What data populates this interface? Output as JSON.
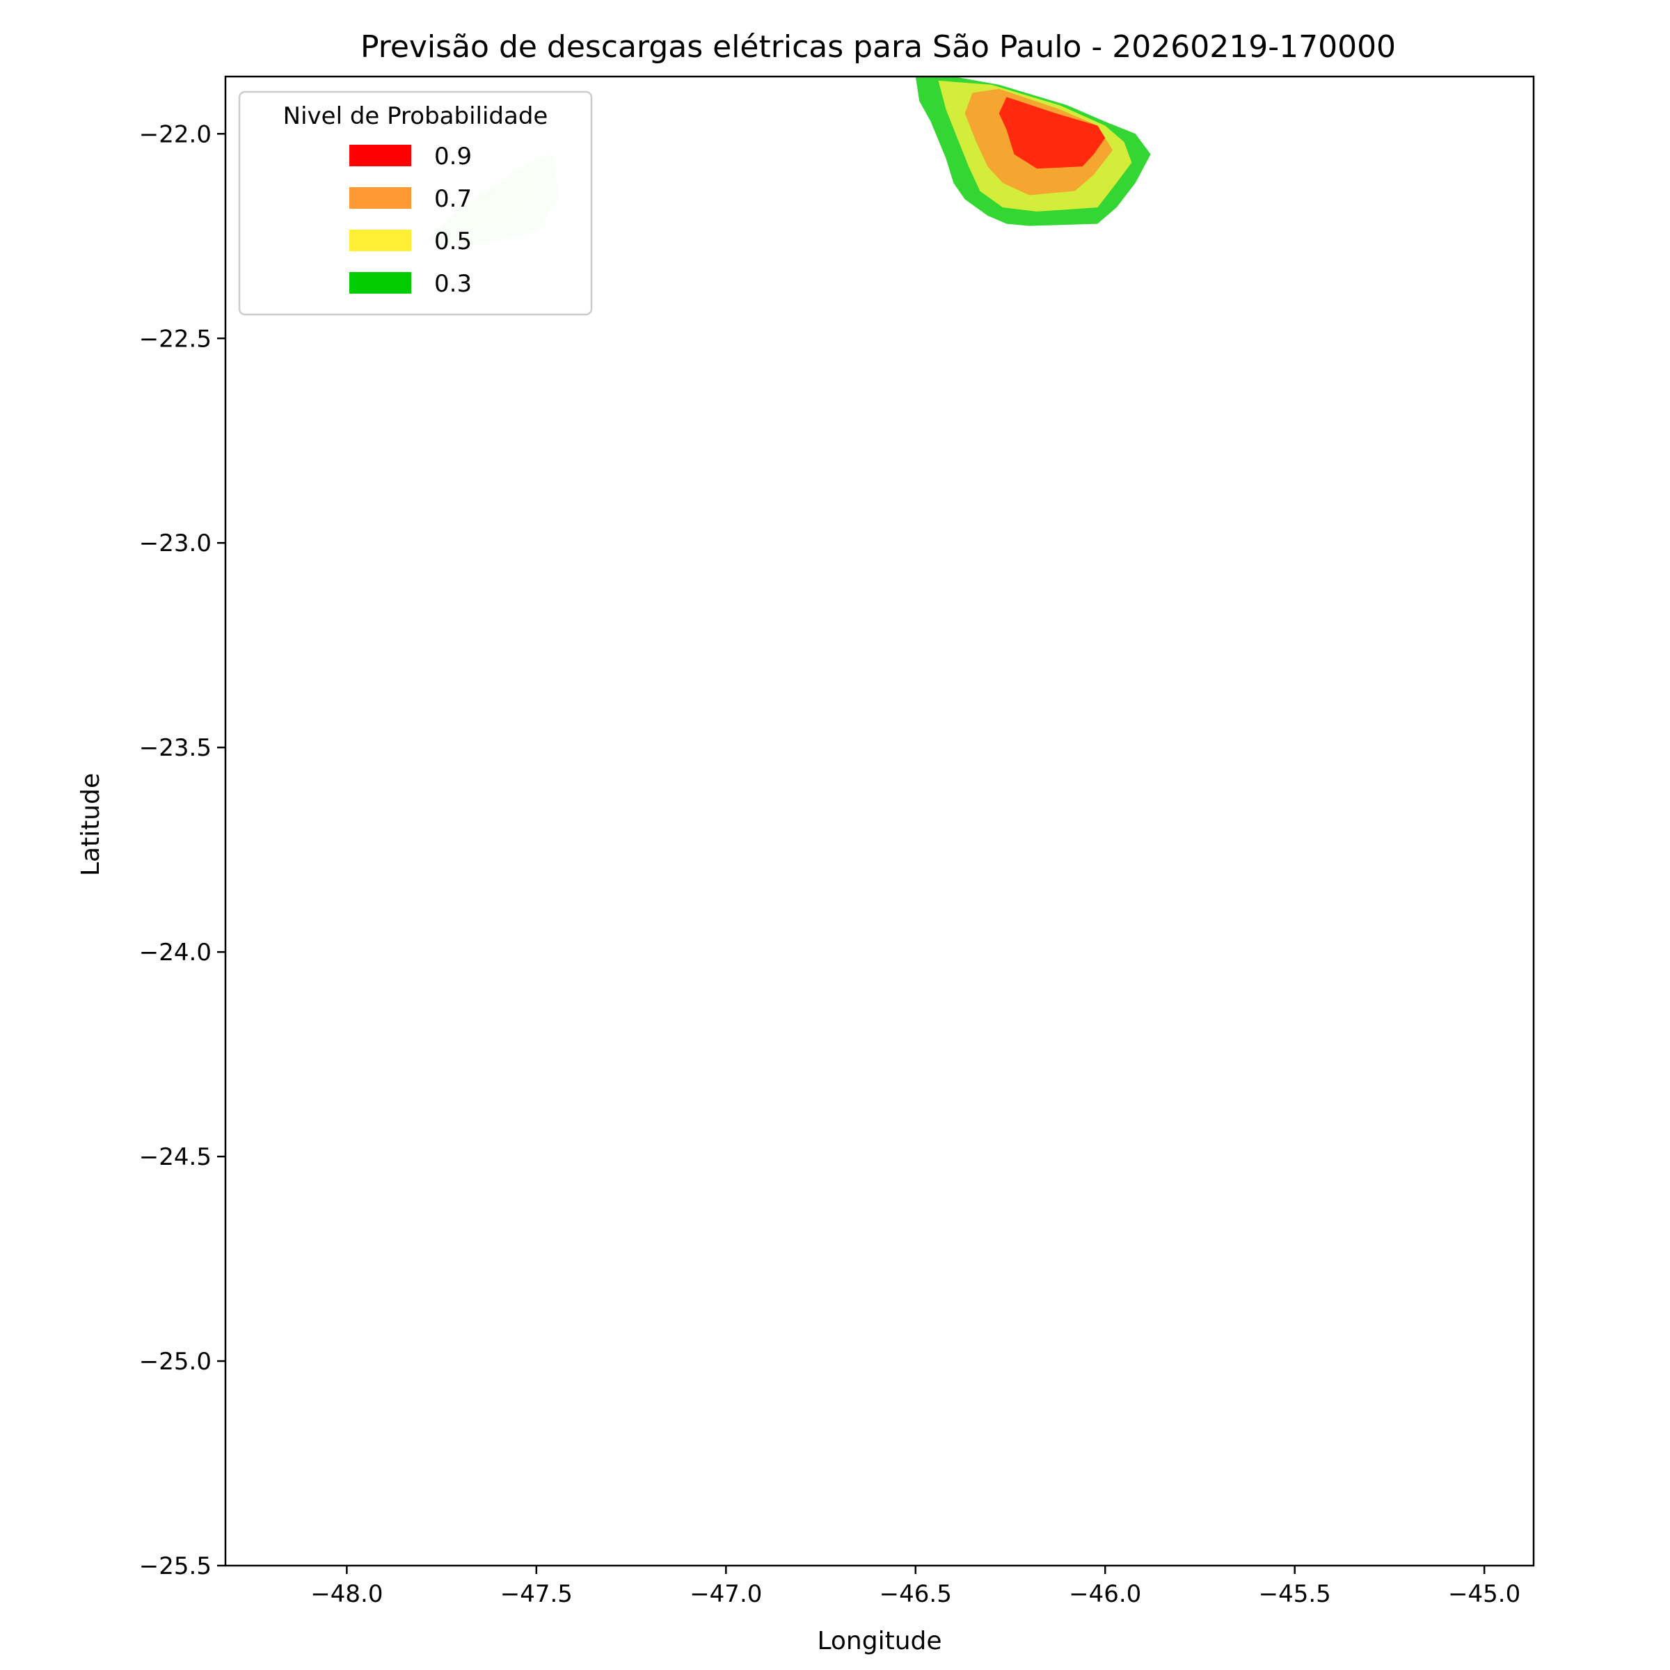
{
  "chart_data": {
    "type": "contour",
    "title": "Previsão de descargas elétricas para São Paulo - 20260219-170000",
    "xlabel": "Longitude",
    "ylabel": "Latitude",
    "xlim": [
      -48.32,
      -44.87
    ],
    "ylim": [
      -25.5,
      -21.86
    ],
    "x_ticks": [
      -48.0,
      -47.5,
      -47.0,
      -46.5,
      -46.0,
      -45.5,
      -45.0
    ],
    "x_tick_labels": [
      "−48.0",
      "−47.5",
      "−47.0",
      "−46.5",
      "−46.0",
      "−45.5",
      "−45.0"
    ],
    "y_ticks": [
      -22.0,
      -22.5,
      -23.0,
      -23.5,
      -24.0,
      -24.5,
      -25.0,
      -25.5
    ],
    "y_tick_labels": [
      "−22.0",
      "−22.5",
      "−23.0",
      "−23.5",
      "−24.0",
      "−24.5",
      "−25.0",
      "−25.5"
    ],
    "grid": false,
    "legend": {
      "title": "Nivel de Probabilidade",
      "position": "top-left",
      "entries": [
        {
          "label": "0.9",
          "color": "#ff0000"
        },
        {
          "label": "0.7",
          "color": "#ff9933"
        },
        {
          "label": "0.5",
          "color": "#ffee33"
        },
        {
          "label": "0.3",
          "color": "#00cc00"
        }
      ]
    },
    "regions": [
      {
        "name": "cell-east",
        "levels": [
          {
            "level": 0.3,
            "color": "#33d633",
            "opacity": 1.0,
            "points": [
              [
                -46.5,
                -21.86
              ],
              [
                -46.4,
                -21.86
              ],
              [
                -46.28,
                -21.88
              ],
              [
                -46.1,
                -21.93
              ],
              [
                -46.0,
                -21.97
              ],
              [
                -45.92,
                -22.0
              ],
              [
                -45.88,
                -22.05
              ],
              [
                -45.92,
                -22.12
              ],
              [
                -45.97,
                -22.18
              ],
              [
                -46.02,
                -22.22
              ],
              [
                -46.2,
                -22.225
              ],
              [
                -46.26,
                -22.22
              ],
              [
                -46.31,
                -22.2
              ],
              [
                -46.37,
                -22.16
              ],
              [
                -46.4,
                -22.12
              ],
              [
                -46.42,
                -22.06
              ],
              [
                -46.46,
                -21.97
              ],
              [
                -46.49,
                -21.92
              ]
            ]
          },
          {
            "level": 0.5,
            "color": "#d4ed3a",
            "opacity": 1.0,
            "points": [
              [
                -46.44,
                -21.87
              ],
              [
                -46.3,
                -21.88
              ],
              [
                -46.12,
                -21.93
              ],
              [
                -46.0,
                -21.98
              ],
              [
                -45.95,
                -22.02
              ],
              [
                -45.93,
                -22.07
              ],
              [
                -45.97,
                -22.12
              ],
              [
                -46.02,
                -22.18
              ],
              [
                -46.18,
                -22.19
              ],
              [
                -46.27,
                -22.18
              ],
              [
                -46.33,
                -22.14
              ],
              [
                -46.36,
                -22.08
              ],
              [
                -46.39,
                -22.01
              ],
              [
                -46.42,
                -21.94
              ]
            ]
          },
          {
            "level": 0.7,
            "color": "#f5a630",
            "opacity": 1.0,
            "points": [
              [
                -46.35,
                -21.9
              ],
              [
                -46.28,
                -21.89
              ],
              [
                -46.12,
                -21.94
              ],
              [
                -46.02,
                -21.98
              ],
              [
                -45.98,
                -22.04
              ],
              [
                -46.03,
                -22.1
              ],
              [
                -46.08,
                -22.14
              ],
              [
                -46.2,
                -22.15
              ],
              [
                -46.27,
                -22.12
              ],
              [
                -46.31,
                -22.08
              ],
              [
                -46.34,
                -22.02
              ],
              [
                -46.37,
                -21.95
              ]
            ]
          },
          {
            "level": 0.9,
            "color": "#ff2a0e",
            "opacity": 1.0,
            "points": [
              [
                -46.26,
                -21.91
              ],
              [
                -46.13,
                -21.95
              ],
              [
                -46.02,
                -21.98
              ],
              [
                -46.0,
                -22.01
              ],
              [
                -46.03,
                -22.05
              ],
              [
                -46.06,
                -22.08
              ],
              [
                -46.18,
                -22.085
              ],
              [
                -46.24,
                -22.05
              ],
              [
                -46.26,
                -21.99
              ],
              [
                -46.28,
                -21.95
              ]
            ]
          }
        ]
      },
      {
        "name": "cell-west",
        "levels": [
          {
            "level": 0.3,
            "color": "#33cc33",
            "opacity": 0.2,
            "points": [
              [
                -47.79,
                -22.26
              ],
              [
                -47.7,
                -22.28
              ],
              [
                -47.5,
                -22.24
              ],
              [
                -47.44,
                -22.15
              ],
              [
                -47.46,
                -22.05
              ],
              [
                -47.52,
                -22.07
              ],
              [
                -47.6,
                -22.12
              ],
              [
                -47.7,
                -22.18
              ]
            ]
          },
          {
            "level": 0.5,
            "color": "#eded33",
            "opacity": 0.2,
            "points": [
              [
                -47.72,
                -22.23
              ],
              [
                -47.6,
                -22.21
              ],
              [
                -47.52,
                -22.16
              ],
              [
                -47.5,
                -22.09
              ],
              [
                -47.6,
                -22.14
              ],
              [
                -47.68,
                -22.19
              ]
            ]
          },
          {
            "level": 0.7,
            "color": "#ff9933",
            "opacity": 0.15,
            "points": [
              [
                -47.66,
                -22.17
              ],
              [
                -47.6,
                -22.14
              ],
              [
                -47.64,
                -22.15
              ]
            ]
          }
        ]
      }
    ]
  }
}
